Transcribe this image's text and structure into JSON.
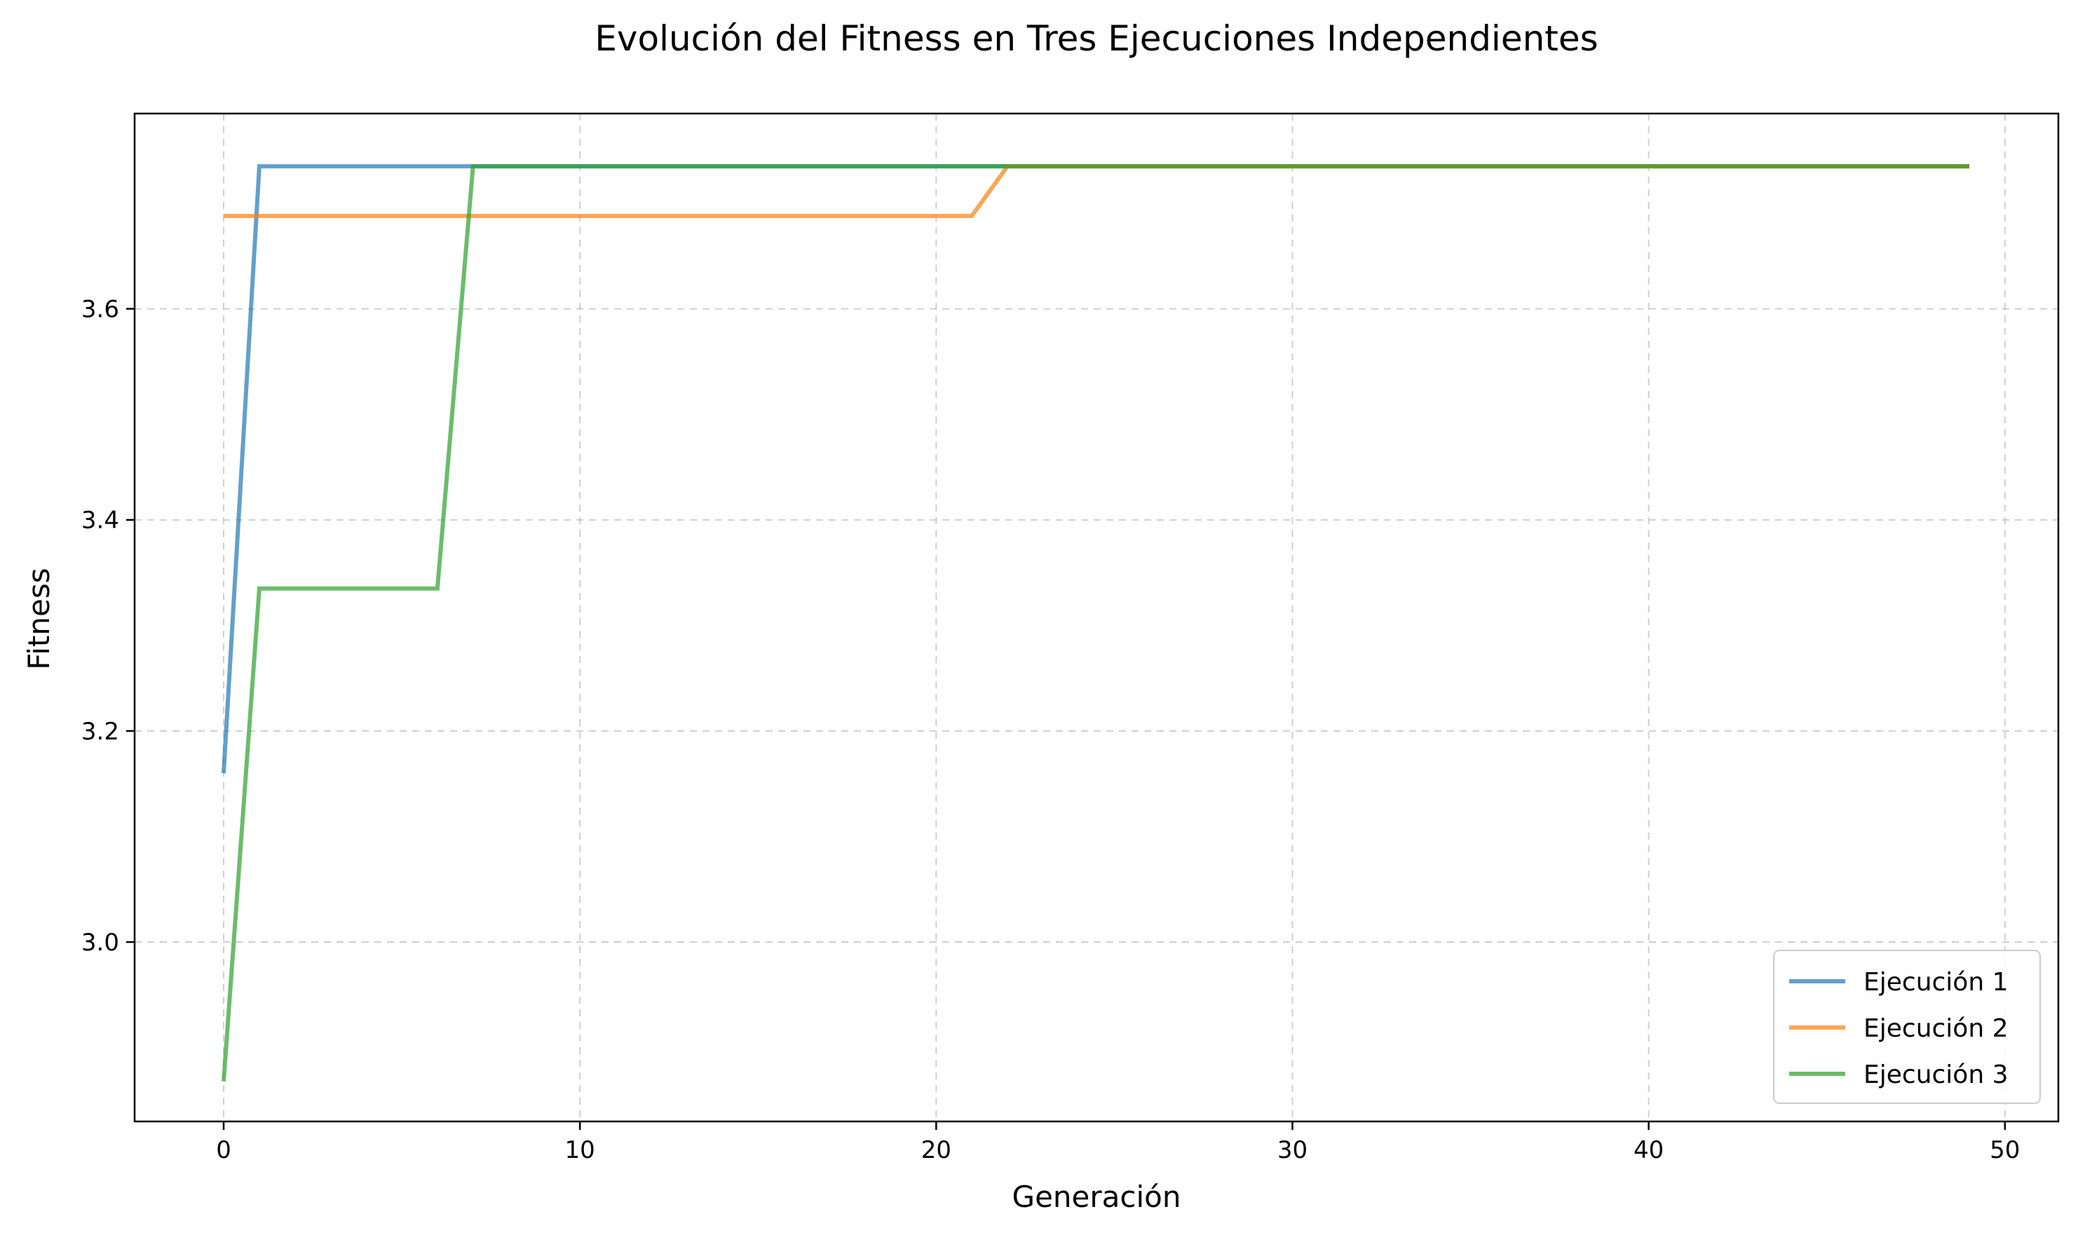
{
  "chart_data": {
    "type": "line",
    "title": "Evolución del Fitness en Tres Ejecuciones Independientes",
    "xlabel": "Generación",
    "ylabel": "Fitness",
    "xlim": [
      -2.5,
      51.5
    ],
    "ylim": [
      2.83,
      3.785
    ],
    "xticks": [
      0,
      10,
      20,
      30,
      40,
      50
    ],
    "yticks": [
      3.0,
      3.2,
      3.4,
      3.6
    ],
    "xtick_labels": [
      "0",
      "10",
      "20",
      "30",
      "40",
      "50"
    ],
    "ytick_labels": [
      "3.0",
      "3.2",
      "3.4",
      "3.6"
    ],
    "grid": true,
    "legend_position": "lower-right",
    "series": [
      {
        "name": "Ejecución 1",
        "color": "#1f77b4",
        "points": [
          [
            0,
            3.16
          ],
          [
            1,
            3.735
          ],
          [
            49,
            3.735
          ]
        ]
      },
      {
        "name": "Ejecución 2",
        "color": "#ff7f0e",
        "points": [
          [
            0,
            3.688
          ],
          [
            21,
            3.688
          ],
          [
            22,
            3.735
          ],
          [
            49,
            3.735
          ]
        ]
      },
      {
        "name": "Ejecución 3",
        "color": "#2ca02c",
        "points": [
          [
            0,
            2.868
          ],
          [
            1,
            3.335
          ],
          [
            6,
            3.335
          ],
          [
            7,
            3.735
          ],
          [
            49,
            3.735
          ]
        ]
      }
    ]
  }
}
